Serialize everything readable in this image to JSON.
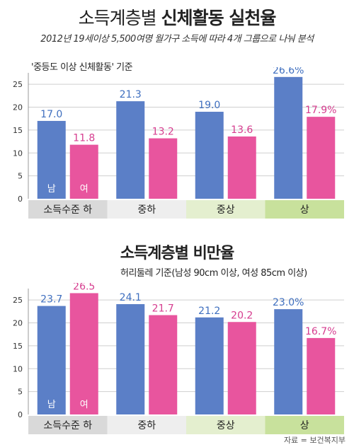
{
  "header": {
    "title_part1": "소득계층별",
    "title_part2": "신체활동 실천율",
    "subtitle": "2012년 19세이상 5,500여명 월가구 소득에 따라 4개 그룹으로 나눠 분석"
  },
  "source": "자료 = 보건복지부",
  "colors": {
    "male": "#5b7fc7",
    "female": "#e8559e",
    "label_male": "#3f6fbf",
    "label_female": "#d63d8f"
  },
  "chart_data": [
    {
      "type": "bar",
      "title": "소득계층별 신체활동 실천율",
      "note": "'중등도 이상 신체활동' 기준",
      "categories": [
        "소득수준 하",
        "중하",
        "중상",
        "상"
      ],
      "series": [
        {
          "name": "남",
          "values": [
            17.0,
            21.3,
            19.0,
            26.6
          ],
          "labels": [
            "17.0",
            "21.3",
            "19.0",
            "26.6%"
          ]
        },
        {
          "name": "여",
          "values": [
            11.8,
            13.2,
            13.6,
            17.9
          ],
          "labels": [
            "11.8",
            "13.2",
            "13.6",
            "17.9%"
          ]
        }
      ],
      "yticks": [
        "0",
        "5",
        "10",
        "15",
        "20",
        "25"
      ],
      "ylim": [
        0,
        27.5
      ],
      "grid": true
    },
    {
      "type": "bar",
      "title": "소득계층별 비만율",
      "note": "허리둘레 기준(남성 90cm 이상, 여성 85cm 이상)",
      "categories": [
        "소득수준 하",
        "중하",
        "중상",
        "상"
      ],
      "series": [
        {
          "name": "남",
          "values": [
            23.7,
            24.1,
            21.2,
            23.0
          ],
          "labels": [
            "23.7",
            "24.1",
            "21.2",
            "23.0%"
          ]
        },
        {
          "name": "여",
          "values": [
            26.5,
            21.7,
            20.2,
            16.7
          ],
          "labels": [
            "26.5",
            "21.7",
            "20.2",
            "16.7%"
          ]
        }
      ],
      "yticks": [
        "0",
        "5",
        "10",
        "15",
        "20",
        "25"
      ],
      "ylim": [
        0,
        27.5
      ],
      "grid": true
    }
  ]
}
